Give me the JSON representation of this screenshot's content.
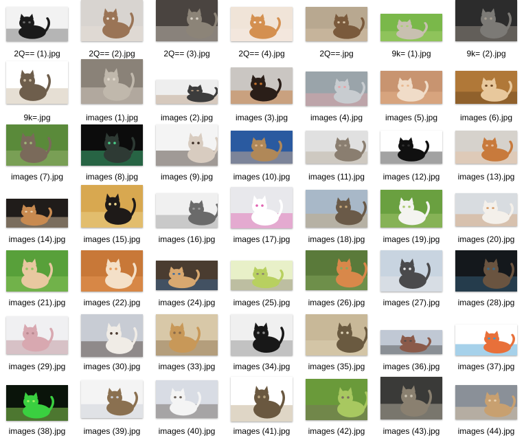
{
  "files": [
    {
      "name": "2Q== (1).jpg",
      "icon": "black-cat-thumbnail",
      "colors": [
        "#f2f2f2",
        "#1a1a1a",
        "#6a6a6a"
      ]
    },
    {
      "name": "2Q== (2).jpg",
      "icon": "maine-coon-cat-thumbnail",
      "colors": [
        "#d8d4d0",
        "#9a7456",
        "#e8e0d6"
      ]
    },
    {
      "name": "2Q== (3).jpg",
      "icon": "tabby-cat-thumbnail",
      "colors": [
        "#4a4440",
        "#8c8478",
        "#d6cfc4"
      ]
    },
    {
      "name": "2Q== (4).jpg",
      "icon": "orange-kitten-thumbnail",
      "colors": [
        "#f0e4d8",
        "#d49050",
        "#f6ece4"
      ]
    },
    {
      "name": "2Q==.jpg",
      "icon": "cats-lying-thumbnail",
      "colors": [
        "#b8a890",
        "#7a5a3c",
        "#d8c4a8"
      ]
    },
    {
      "name": "9k= (1).jpg",
      "icon": "cat-jumping-thumbnail",
      "colors": [
        "#7ab84a",
        "#c8c0b0",
        "#a8d070"
      ]
    },
    {
      "name": "9k= (2).jpg",
      "icon": "grey-kittens-thumbnail",
      "colors": [
        "#2c2c2c",
        "#7c7a76",
        "#a49c90"
      ]
    },
    {
      "name": "9k=.jpg",
      "icon": "tabby-cat-standing-thumbnail",
      "colors": [
        "#ffffff",
        "#6e5e4c",
        "#c8b8a0"
      ]
    },
    {
      "name": "images (1).jpg",
      "icon": "scottish-fold-thumbnail",
      "colors": [
        "#8a8278",
        "#c0b8ac",
        "#e0d8cc"
      ]
    },
    {
      "name": "images (2).jpg",
      "icon": "kittens-row-thumbnail",
      "colors": [
        "#eeeeee",
        "#3c3c3c",
        "#b89c80"
      ]
    },
    {
      "name": "images (3).jpg",
      "icon": "calico-cat-face-thumbnail",
      "colors": [
        "#cac6c2",
        "#2a1e18",
        "#c8742e"
      ]
    },
    {
      "name": "images (4).jpg",
      "icon": "grey-cat-tongue-thumbnail",
      "colors": [
        "#9aa4aa",
        "#c8ccd0",
        "#e8a4a8"
      ]
    },
    {
      "name": "images (5).jpg",
      "icon": "cream-kitten-thumbnail",
      "colors": [
        "#c89470",
        "#f0dcc8",
        "#e8b890"
      ]
    },
    {
      "name": "images (6).jpg",
      "icon": "kitten-basket-thumbnail",
      "colors": [
        "#b07838",
        "#e8c89c",
        "#6a4420"
      ]
    },
    {
      "name": "images (7).jpg",
      "icon": "kitten-grass-thumbnail",
      "colors": [
        "#5a8a3a",
        "#7a6a5a",
        "#a0b878"
      ]
    },
    {
      "name": "images (8).jpg",
      "icon": "dark-cat-green-eyes-thumbnail",
      "colors": [
        "#0c0c0c",
        "#2e3a34",
        "#4ad08a"
      ]
    },
    {
      "name": "images (9).jpg",
      "icon": "siamese-cat-thumbnail",
      "colors": [
        "#f4f4f4",
        "#d8ccc0",
        "#3a2c24"
      ]
    },
    {
      "name": "images (10).jpg",
      "icon": "kitten-in-hands-thumbnail",
      "colors": [
        "#2a5aa0",
        "#b08858",
        "#e0b890"
      ]
    },
    {
      "name": "images (11).jpg",
      "icon": "tabby-kitten-thumbnail",
      "colors": [
        "#e0e0e0",
        "#8a7e70",
        "#b8ac9c"
      ]
    },
    {
      "name": "images (12).jpg",
      "icon": "black-cat-lying-thumbnail",
      "colors": [
        "#ffffff",
        "#101010",
        "#303030"
      ]
    },
    {
      "name": "images (13).jpg",
      "icon": "orange-cat-hand-thumbnail",
      "colors": [
        "#d6d2cc",
        "#c87a3c",
        "#e8c0a0"
      ]
    },
    {
      "name": "images (14).jpg",
      "icon": "kittens-playing-thumbnail",
      "colors": [
        "#201c1a",
        "#c88a50",
        "#e8d0b0"
      ]
    },
    {
      "name": "images (15).jpg",
      "icon": "fluffy-black-cat-thumbnail",
      "colors": [
        "#d8a850",
        "#1e1a18",
        "#f0d890"
      ]
    },
    {
      "name": "images (16).jpg",
      "icon": "three-grey-cats-thumbnail",
      "colors": [
        "#f0f0f0",
        "#6a6a6a",
        "#9a9a9a"
      ]
    },
    {
      "name": "images (17).jpg",
      "icon": "white-cat-unicorn-thumbnail",
      "colors": [
        "#e8e8ec",
        "#ffffff",
        "#e060b0"
      ]
    },
    {
      "name": "images (18).jpg",
      "icon": "cats-in-box-thumbnail",
      "colors": [
        "#a8b8c8",
        "#6a5a48",
        "#c8a878"
      ]
    },
    {
      "name": "images (19).jpg",
      "icon": "white-cat-garden-thumbnail",
      "colors": [
        "#6aa040",
        "#f4f4f0",
        "#a8c870"
      ]
    },
    {
      "name": "images (20).jpg",
      "icon": "white-cat-toy-thumbnail",
      "colors": [
        "#d8dce0",
        "#f4f0ea",
        "#d8a070"
      ]
    },
    {
      "name": "images (21).jpg",
      "icon": "cream-cat-grass-thumbnail",
      "colors": [
        "#58a03a",
        "#e8c8a0",
        "#90c860"
      ]
    },
    {
      "name": "images (22).jpg",
      "icon": "orange-white-cat-thumbnail",
      "colors": [
        "#c87838",
        "#f4e0c8",
        "#e89a58"
      ]
    },
    {
      "name": "images (24).jpg",
      "icon": "cats-eating-thumbnail",
      "colors": [
        "#4a3c30",
        "#d8a870",
        "#3a6aa0"
      ]
    },
    {
      "name": "images (25).jpg",
      "icon": "kitten-green-blanket-thumbnail",
      "colors": [
        "#e8f0c8",
        "#b8d060",
        "#8a8070"
      ]
    },
    {
      "name": "images (26).jpg",
      "icon": "orange-cat-field-thumbnail",
      "colors": [
        "#5a7a3a",
        "#d8884a",
        "#88a860"
      ]
    },
    {
      "name": "images (27).jpg",
      "icon": "grey-cat-sitting-thumbnail",
      "colors": [
        "#c8d4e0",
        "#4a4a4c",
        "#e8e8e8"
      ]
    },
    {
      "name": "images (28).jpg",
      "icon": "tabby-cat-bokeh-thumbnail",
      "colors": [
        "#14181c",
        "#6a5440",
        "#3a6888"
      ]
    },
    {
      "name": "images (29).jpg",
      "icon": "sphynx-cat-thumbnail",
      "colors": [
        "#f0f0f2",
        "#d8a8b0",
        "#b88890"
      ]
    },
    {
      "name": "images (30).jpg",
      "icon": "siamese-kitten-bed-thumbnail",
      "colors": [
        "#c8ccd4",
        "#f0ece6",
        "#4a3a30"
      ]
    },
    {
      "name": "images (33).jpg",
      "icon": "three-kittens-thumbnail",
      "colors": [
        "#d8c8a8",
        "#c89858",
        "#8a6a48"
      ]
    },
    {
      "name": "images (34).jpg",
      "icon": "black-white-kittens-thumbnail",
      "colors": [
        "#f0f0f0",
        "#181818",
        "#8a8a8a"
      ]
    },
    {
      "name": "images (35).jpg",
      "icon": "tabby-cat-resting-thumbnail",
      "colors": [
        "#c8b898",
        "#6a5a40",
        "#e0d4b8"
      ]
    },
    {
      "name": "images (36).jpg",
      "icon": "cat-on-road-thumbnail",
      "colors": [
        "#c0c8d4",
        "#8a5a4a",
        "#4a4a4a"
      ]
    },
    {
      "name": "images (37).jpg",
      "icon": "cat-infographic-thumbnail",
      "colors": [
        "#ffffff",
        "#e8703a",
        "#3a9ad0"
      ]
    },
    {
      "name": "images (38).jpg",
      "icon": "glowing-green-cat-thumbnail",
      "colors": [
        "#0a140a",
        "#3ad040",
        "#a0f060"
      ]
    },
    {
      "name": "images (39).jpg",
      "icon": "bengal-maine-coon-thumbnail",
      "colors": [
        "#f4f4f4",
        "#8a7050",
        "#c8ccd4"
      ]
    },
    {
      "name": "images (40).jpg",
      "icon": "kitten-bowl-thumbnail",
      "colors": [
        "#d8dce4",
        "#f4f4f4",
        "#6a6058"
      ]
    },
    {
      "name": "images (41).jpg",
      "icon": "tabby-cat-walking-thumbnail",
      "colors": [
        "#ffffff",
        "#6a5840",
        "#b8a480"
      ]
    },
    {
      "name": "images (42).jpg",
      "icon": "kitten-meadow-thumbnail",
      "colors": [
        "#6a9a3a",
        "#a8c860",
        "#7a7060"
      ]
    },
    {
      "name": "images (43).jpg",
      "icon": "tabby-cat-face-thumbnail",
      "colors": [
        "#3a3a38",
        "#8a8070",
        "#c8c0b0"
      ]
    },
    {
      "name": "images (44).jpg",
      "icon": "surprised-cat-thumbnail",
      "colors": [
        "#8a9098",
        "#c8a070",
        "#e8d0b0"
      ]
    }
  ]
}
